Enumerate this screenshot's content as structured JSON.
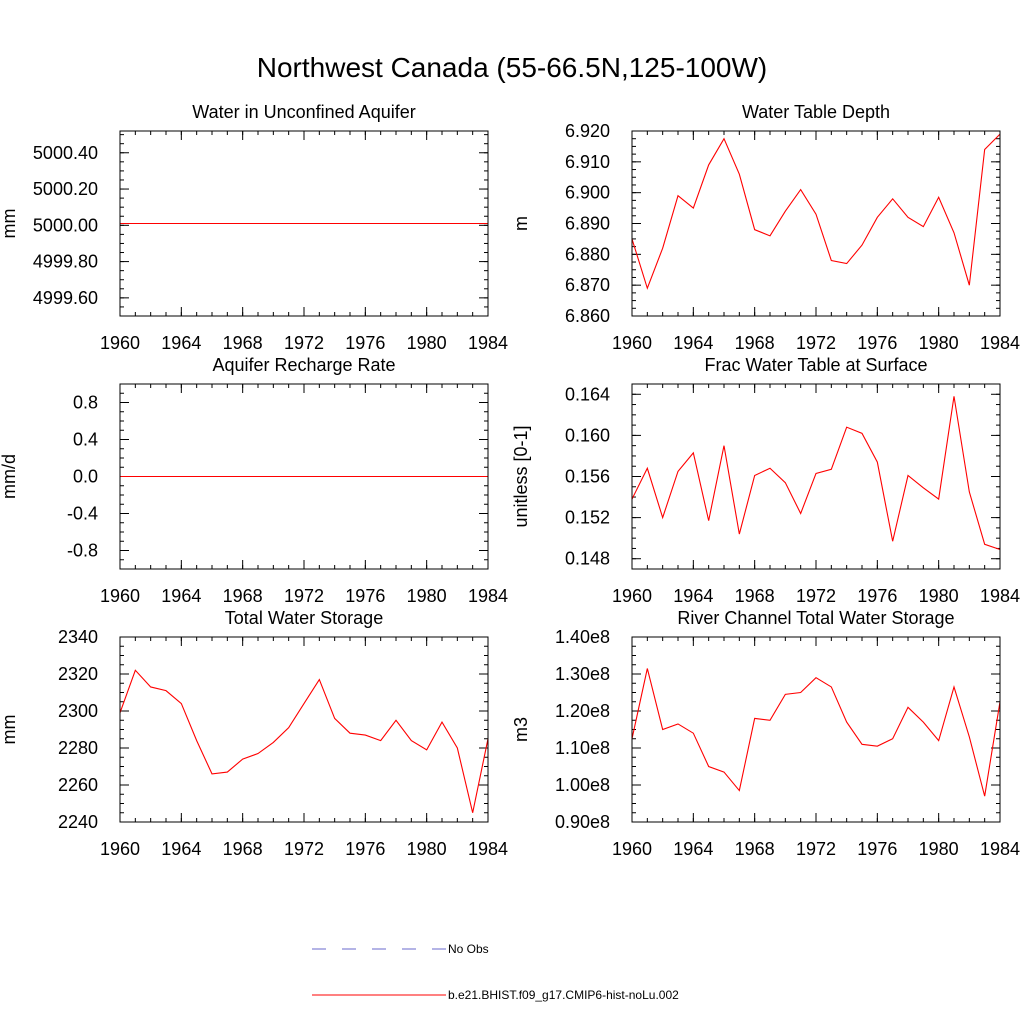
{
  "title": "Northwest Canada (55-66.5N,125-100W)",
  "colors": {
    "model_line": "#ff0000",
    "obs_line": "#6a6acd",
    "axis": "#000000"
  },
  "legend": {
    "items": [
      {
        "label": "No Obs",
        "style": "dashed",
        "color": "#6a6acd"
      },
      {
        "label": "b.e21.BHIST.f09_g17.CMIP6-hist-noLu.002",
        "style": "solid",
        "color": "#ff0000"
      }
    ]
  },
  "chart_data": [
    {
      "type": "line",
      "title": "Water in Unconfined Aquifer",
      "ylabel": "mm",
      "xlim": [
        1960,
        1984
      ],
      "ylim": [
        4999.5,
        5000.52
      ],
      "xticks": [
        1960,
        1964,
        1968,
        1972,
        1976,
        1980,
        1984
      ],
      "yticks": [
        4999.6,
        4999.8,
        5000.0,
        5000.2,
        5000.4
      ],
      "ytick_labels": [
        "4999.60",
        "4999.80",
        "5000.00",
        "5000.20",
        "5000.40"
      ],
      "series": [
        {
          "color": "#ff0000",
          "x": [
            1960,
            1961,
            1962,
            1963,
            1964,
            1965,
            1966,
            1967,
            1968,
            1969,
            1970,
            1971,
            1972,
            1973,
            1974,
            1975,
            1976,
            1977,
            1978,
            1979,
            1980,
            1981,
            1982,
            1983,
            1984
          ],
          "values": [
            5000.01,
            5000.01,
            5000.01,
            5000.01,
            5000.01,
            5000.01,
            5000.01,
            5000.01,
            5000.01,
            5000.01,
            5000.01,
            5000.01,
            5000.01,
            5000.01,
            5000.01,
            5000.01,
            5000.01,
            5000.01,
            5000.01,
            5000.01,
            5000.01,
            5000.01,
            5000.01,
            5000.01,
            5000.01
          ]
        }
      ]
    },
    {
      "type": "line",
      "title": "Water Table Depth",
      "ylabel": "m",
      "xlim": [
        1960,
        1984
      ],
      "ylim": [
        6.86,
        6.92
      ],
      "xticks": [
        1960,
        1964,
        1968,
        1972,
        1976,
        1980,
        1984
      ],
      "yticks": [
        6.86,
        6.87,
        6.88,
        6.89,
        6.9,
        6.91,
        6.92
      ],
      "ytick_labels": [
        "6.860",
        "6.870",
        "6.880",
        "6.890",
        "6.900",
        "6.910",
        "6.920"
      ],
      "series": [
        {
          "color": "#ff0000",
          "x": [
            1960,
            1961,
            1962,
            1963,
            1964,
            1965,
            1966,
            1967,
            1968,
            1969,
            1970,
            1971,
            1972,
            1973,
            1974,
            1975,
            1976,
            1977,
            1978,
            1979,
            1980,
            1981,
            1982,
            1983,
            1984
          ],
          "values": [
            6.885,
            6.869,
            6.882,
            6.899,
            6.895,
            6.909,
            6.9175,
            6.906,
            6.888,
            6.886,
            6.894,
            6.901,
            6.893,
            6.878,
            6.877,
            6.883,
            6.892,
            6.898,
            6.892,
            6.889,
            6.8985,
            6.887,
            6.87,
            6.914,
            6.919
          ]
        }
      ]
    },
    {
      "type": "line",
      "title": "Aquifer Recharge Rate",
      "ylabel": "mm/d",
      "xlim": [
        1960,
        1984
      ],
      "ylim": [
        -1.0,
        1.0
      ],
      "xticks": [
        1960,
        1964,
        1968,
        1972,
        1976,
        1980,
        1984
      ],
      "yticks": [
        -0.8,
        -0.4,
        0.0,
        0.4,
        0.8
      ],
      "ytick_labels": [
        "-0.8",
        "-0.4",
        "0.0",
        "0.4",
        "0.8"
      ],
      "series": [
        {
          "color": "#ff0000",
          "x": [
            1960,
            1961,
            1962,
            1963,
            1964,
            1965,
            1966,
            1967,
            1968,
            1969,
            1970,
            1971,
            1972,
            1973,
            1974,
            1975,
            1976,
            1977,
            1978,
            1979,
            1980,
            1981,
            1982,
            1983,
            1984
          ],
          "values": [
            0,
            0,
            0,
            0,
            0,
            0,
            0,
            0,
            0,
            0,
            0,
            0,
            0,
            0,
            0,
            0,
            0,
            0,
            0,
            0,
            0,
            0,
            0,
            0,
            0
          ]
        }
      ]
    },
    {
      "type": "line",
      "title": "Frac Water Table at Surface",
      "ylabel": "unitless [0-1]",
      "xlim": [
        1960,
        1984
      ],
      "ylim": [
        0.147,
        0.165
      ],
      "xticks": [
        1960,
        1964,
        1968,
        1972,
        1976,
        1980,
        1984
      ],
      "yticks": [
        0.148,
        0.152,
        0.156,
        0.16,
        0.164
      ],
      "ytick_labels": [
        "0.148",
        "0.152",
        "0.156",
        "0.160",
        "0.164"
      ],
      "series": [
        {
          "color": "#ff0000",
          "x": [
            1960,
            1961,
            1962,
            1963,
            1964,
            1965,
            1966,
            1967,
            1968,
            1969,
            1970,
            1971,
            1972,
            1973,
            1974,
            1975,
            1976,
            1977,
            1978,
            1979,
            1980,
            1981,
            1982,
            1983,
            1984
          ],
          "values": [
            0.1538,
            0.1568,
            0.152,
            0.1565,
            0.1583,
            0.1517,
            0.159,
            0.1504,
            0.1561,
            0.1568,
            0.1554,
            0.1524,
            0.1563,
            0.1567,
            0.1608,
            0.1602,
            0.1574,
            0.1497,
            0.1561,
            0.1549,
            0.1538,
            0.1638,
            0.1545,
            0.1494,
            0.1489
          ]
        }
      ]
    },
    {
      "type": "line",
      "title": "Total Water Storage",
      "ylabel": "mm",
      "xlim": [
        1960,
        1984
      ],
      "ylim": [
        2240,
        2340
      ],
      "xticks": [
        1960,
        1964,
        1968,
        1972,
        1976,
        1980,
        1984
      ],
      "yticks": [
        2240,
        2260,
        2280,
        2300,
        2320,
        2340
      ],
      "ytick_labels": [
        "2240",
        "2260",
        "2280",
        "2300",
        "2320",
        "2340"
      ],
      "series": [
        {
          "color": "#ff0000",
          "x": [
            1960,
            1961,
            1962,
            1963,
            1964,
            1965,
            1966,
            1967,
            1968,
            1969,
            1970,
            1971,
            1972,
            1973,
            1974,
            1975,
            1976,
            1977,
            1978,
            1979,
            1980,
            1981,
            1982,
            1983,
            1984
          ],
          "values": [
            2299,
            2322,
            2313,
            2311,
            2304,
            2284,
            2266,
            2267,
            2274,
            2277,
            2283,
            2291,
            2304,
            2317,
            2296,
            2288,
            2287,
            2284,
            2295,
            2284,
            2279,
            2294,
            2280,
            2245,
            2285
          ]
        }
      ]
    },
    {
      "type": "line",
      "title": "River Channel Total Water Storage",
      "ylabel": "m3",
      "xlim": [
        1960,
        1984
      ],
      "ylim": [
        90000000,
        140000000
      ],
      "xticks": [
        1960,
        1964,
        1968,
        1972,
        1976,
        1980,
        1984
      ],
      "yticks": [
        90000000,
        100000000,
        110000000,
        120000000,
        130000000,
        140000000
      ],
      "ytick_labels": [
        "0.90e8",
        "1.00e8",
        "1.10e8",
        "1.20e8",
        "1.30e8",
        "1.40e8"
      ],
      "series": [
        {
          "color": "#ff0000",
          "x": [
            1960,
            1961,
            1962,
            1963,
            1964,
            1965,
            1966,
            1967,
            1968,
            1969,
            1970,
            1971,
            1972,
            1973,
            1974,
            1975,
            1976,
            1977,
            1978,
            1979,
            1980,
            1981,
            1982,
            1983,
            1984
          ],
          "values": [
            112500000,
            131500000,
            115000000,
            116500000,
            114000000,
            105000000,
            103500000,
            98500000,
            118000000,
            117500000,
            124500000,
            125000000,
            129000000,
            126500000,
            117000000,
            111000000,
            110500000,
            112500000,
            121000000,
            117000000,
            112000000,
            126500000,
            113000000,
            97000000,
            122500000
          ]
        }
      ]
    }
  ]
}
